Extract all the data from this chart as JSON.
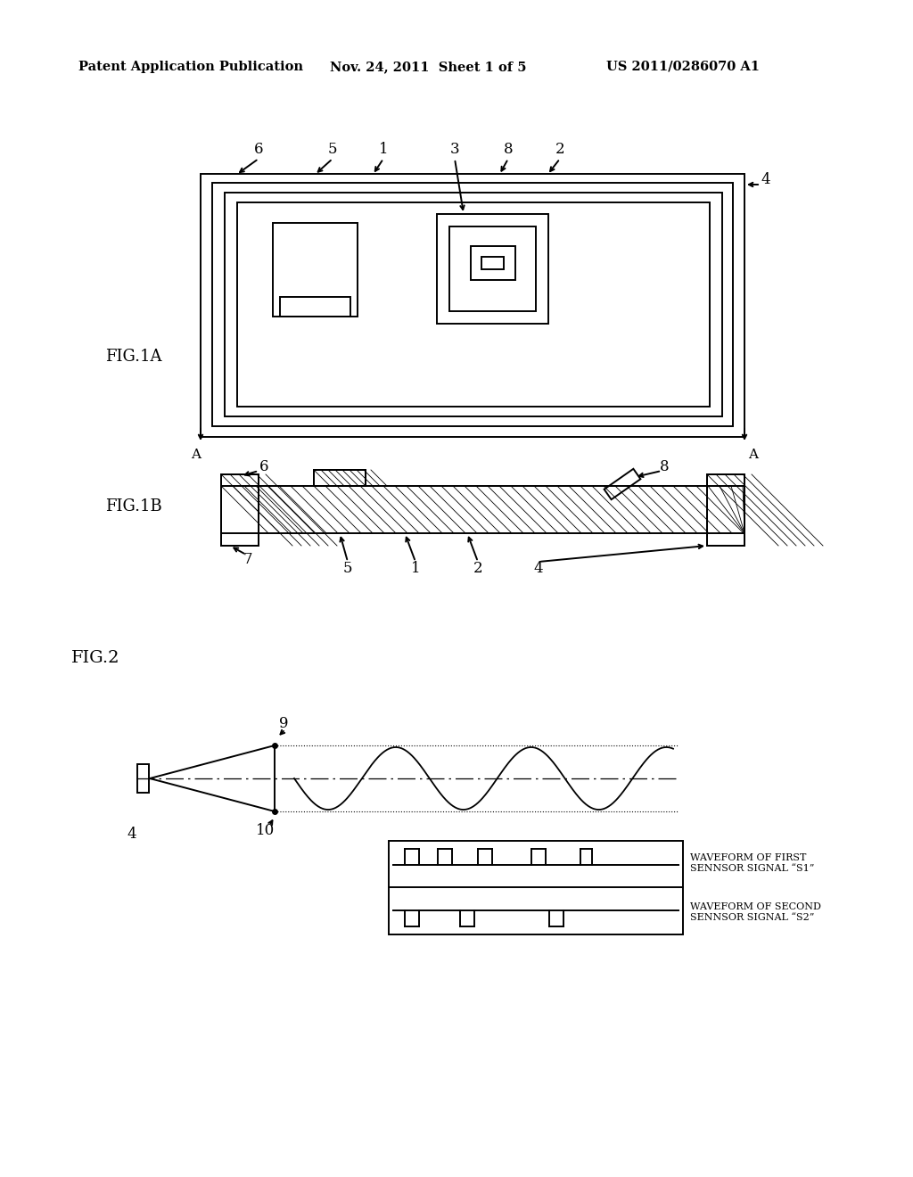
{
  "bg_color": "#ffffff",
  "header_text": "Patent Application Publication",
  "header_date": "Nov. 24, 2011  Sheet 1 of 5",
  "header_patent": "US 2011/0286070 A1",
  "fig1a_label": "FIG.1A",
  "fig1b_label": "FIG.1B",
  "fig2_label": "FIG.2",
  "waveform1_label": "WAVEFORM OF FIRST\nSENNSOR SIGNAL “S1”",
  "waveform2_label": "WAVEFORM OF SECOND\nSENNSOR SIGNAL “S2”",
  "line_color": "#000000",
  "lw": 1.4,
  "lw_thick": 2.2
}
